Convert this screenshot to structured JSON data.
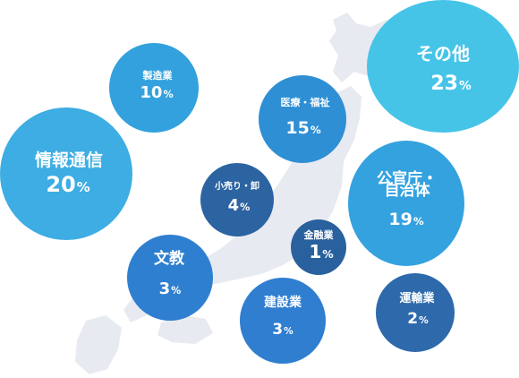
{
  "chart_data": {
    "type": "bubble",
    "background": "japan-map",
    "unit": "%",
    "series": [
      {
        "key": "sonota",
        "label": "その他",
        "value": 23,
        "color": "#45c4e8"
      },
      {
        "key": "joho",
        "label": "情報通信",
        "value": 20,
        "color": "#3dade3"
      },
      {
        "key": "kanko",
        "label": "公官庁・自治体",
        "value": 19,
        "color": "#34a2df"
      },
      {
        "key": "iryo",
        "label": "医療・福祉",
        "value": 15,
        "color": "#2e8fd4"
      },
      {
        "key": "seizo",
        "label": "製造業",
        "value": 10,
        "color": "#33a1dd"
      },
      {
        "key": "kouri",
        "label": "小売り・卸",
        "value": 4,
        "color": "#2c63a1"
      },
      {
        "key": "bunkyo",
        "label": "文教",
        "value": 3,
        "color": "#2f7fd0"
      },
      {
        "key": "kensetsu",
        "label": "建設業",
        "value": 3,
        "color": "#2f7ed0"
      },
      {
        "key": "unyu",
        "label": "運輸業",
        "value": 2,
        "color": "#2e6aab"
      },
      {
        "key": "kinyu",
        "label": "金融業",
        "value": 1,
        "color": "#29619e"
      }
    ]
  },
  "colors": {
    "map_fill": "#e8eaf1"
  },
  "bubbles": {
    "sonota": {
      "label": "その他",
      "label_lines": [
        "その他"
      ],
      "value": "23",
      "unit": "%"
    },
    "joho": {
      "label": "情報通信",
      "label_lines": [
        "情報通信"
      ],
      "value": "20",
      "unit": "%"
    },
    "seizo": {
      "label": "製造業",
      "label_lines": [
        "製造業"
      ],
      "value": "10",
      "unit": "%"
    },
    "iryo": {
      "label": "医療・福祉",
      "label_lines": [
        "医療・福祉"
      ],
      "value": "15",
      "unit": "%"
    },
    "kanko": {
      "label": "公官庁・自治体",
      "label_lines": [
        "公官庁・",
        "自治体"
      ],
      "value": "19",
      "unit": "%"
    },
    "kouri": {
      "label": "小売り・卸",
      "label_lines": [
        "小売り・卸"
      ],
      "value": "4",
      "unit": "%"
    },
    "kinyu": {
      "label": "金融業",
      "label_lines": [
        "金融業"
      ],
      "value": "1",
      "unit": "%"
    },
    "bunkyo": {
      "label": "文教",
      "label_lines": [
        "文教"
      ],
      "value": "3",
      "unit": "%"
    },
    "kensetsu": {
      "label": "建設業",
      "label_lines": [
        "建設業"
      ],
      "value": "3",
      "unit": "%"
    },
    "unyu": {
      "label": "運輸業",
      "label_lines": [
        "運輸業"
      ],
      "value": "2",
      "unit": "%"
    }
  }
}
